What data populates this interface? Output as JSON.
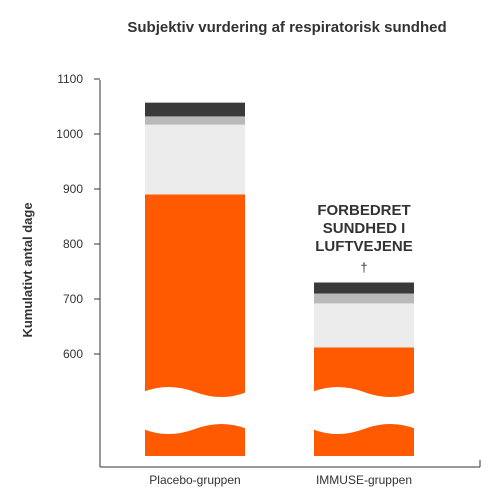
{
  "chart_data": {
    "type": "bar",
    "stacked": true,
    "title": "Subjektiv vurdering af respiratorisk sundhed",
    "ylabel": "Kumulativt antal dage",
    "xlabel": "",
    "ylim": [
      0,
      1100
    ],
    "y_axis_break": true,
    "yticks": [
      "1100",
      "1000",
      "900",
      "800",
      "700",
      "600"
    ],
    "categories": [
      "Placebo-gruppen",
      "IMMUSE-gruppen"
    ],
    "series": [
      {
        "color": "#ff5a00",
        "values": [
          890,
          612
        ]
      },
      {
        "color": "#ececec",
        "values": [
          127,
          80
        ]
      },
      {
        "color": "#b9b9b9",
        "values": [
          15,
          18
        ]
      },
      {
        "color": "#3a3a3a",
        "values": [
          25,
          20
        ]
      }
    ],
    "annotation": {
      "lines": [
        "FORBEDRET",
        "SUNDHED I",
        "LUFTVEJENE"
      ],
      "marker": "†"
    },
    "grid": false
  }
}
